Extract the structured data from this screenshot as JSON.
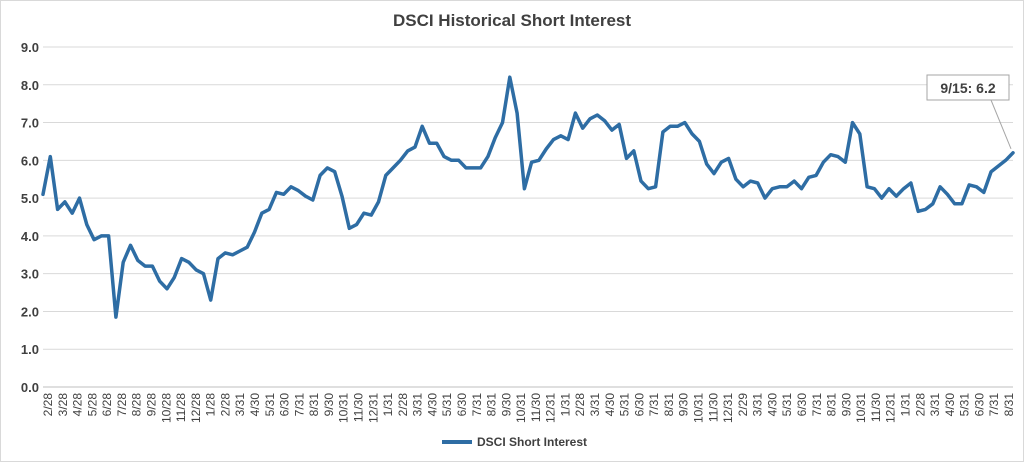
{
  "chart_data": {
    "type": "line",
    "title": "DSCI Historical Short Interest",
    "xlabel": "",
    "ylabel": "",
    "ylim": [
      0,
      9
    ],
    "yticks": [
      "0.0",
      "1.0",
      "2.0",
      "3.0",
      "4.0",
      "5.0",
      "6.0",
      "7.0",
      "8.0",
      "9.0"
    ],
    "grid": true,
    "legend_position": "bottom",
    "line_color": "#2e6da4",
    "x_tick_labels": [
      "2/28",
      "3/28",
      "4/28",
      "5/28",
      "6/28",
      "7/28",
      "8/28",
      "9/28",
      "10/28",
      "11/28",
      "12/28",
      "1/28",
      "2/28",
      "3/31",
      "4/30",
      "5/31",
      "6/30",
      "7/31",
      "8/31",
      "9/30",
      "10/31",
      "11/30",
      "12/31",
      "1/31",
      "2/28",
      "3/31",
      "4/30",
      "5/31",
      "6/30",
      "7/31",
      "8/31",
      "9/30",
      "10/31",
      "11/30",
      "12/31",
      "1/31",
      "2/28",
      "3/31",
      "4/30",
      "5/31",
      "6/30",
      "7/31",
      "8/31",
      "9/30",
      "10/31",
      "11/30",
      "12/31",
      "2/29",
      "3/31",
      "4/30",
      "5/31",
      "6/30",
      "7/31",
      "8/31",
      "9/30",
      "10/31",
      "11/30",
      "12/31",
      "1/31",
      "2/28",
      "3/31",
      "4/30",
      "5/31",
      "6/30",
      "7/31",
      "8/31"
    ],
    "series": [
      {
        "name": "DSCI Short Interest",
        "values": [
          5.1,
          6.1,
          4.7,
          4.9,
          4.6,
          5.0,
          4.3,
          3.9,
          4.0,
          4.0,
          1.85,
          3.3,
          3.75,
          3.35,
          3.2,
          3.2,
          2.8,
          2.6,
          2.9,
          3.4,
          3.3,
          3.1,
          3.0,
          2.3,
          3.4,
          3.55,
          3.5,
          3.6,
          3.7,
          4.1,
          4.6,
          4.7,
          5.15,
          5.1,
          5.3,
          5.2,
          5.05,
          4.95,
          5.6,
          5.8,
          5.7,
          5.05,
          4.2,
          4.3,
          4.6,
          4.55,
          4.9,
          5.6,
          5.8,
          6.0,
          6.25,
          6.35,
          6.9,
          6.45,
          6.45,
          6.1,
          6.0,
          6.0,
          5.8,
          5.8,
          5.8,
          6.1,
          6.6,
          7.0,
          8.2,
          7.25,
          5.25,
          5.95,
          6.0,
          6.3,
          6.55,
          6.65,
          6.55,
          7.25,
          6.85,
          7.1,
          7.2,
          7.05,
          6.8,
          6.95,
          6.05,
          6.25,
          5.45,
          5.25,
          5.3,
          6.75,
          6.9,
          6.9,
          7.0,
          6.7,
          6.5,
          5.9,
          5.65,
          5.95,
          6.05,
          5.5,
          5.3,
          5.45,
          5.4,
          5.0,
          5.25,
          5.3,
          5.3,
          5.45,
          5.25,
          5.55,
          5.6,
          5.95,
          6.15,
          6.1,
          5.95,
          7.0,
          6.7,
          5.3,
          5.25,
          5.0,
          5.25,
          5.05,
          5.25,
          5.4,
          4.65,
          4.7,
          4.85,
          5.3,
          5.1,
          4.85,
          4.85,
          5.35,
          5.3,
          5.15,
          5.7,
          5.85,
          6.0,
          6.2
        ]
      }
    ],
    "annotation": {
      "text": "9/15: 6.2",
      "point": "last"
    }
  }
}
